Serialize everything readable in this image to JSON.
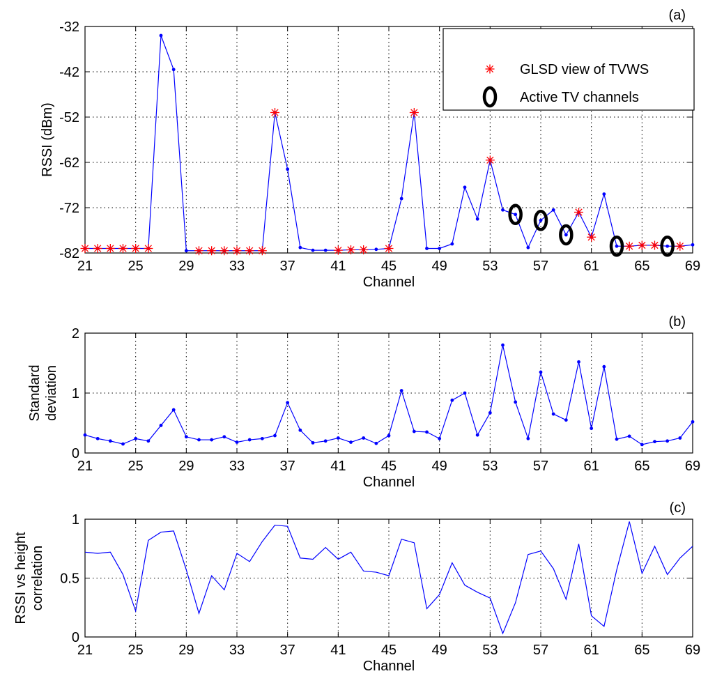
{
  "chart_data": [
    {
      "type": "line",
      "panel_label": "(a)",
      "xlabel": "Channel",
      "ylabel": "RSSI (dBm)",
      "xlim": [
        21,
        69
      ],
      "ylim": [
        -82,
        -32
      ],
      "xticks": [
        21,
        25,
        29,
        33,
        37,
        41,
        45,
        49,
        53,
        57,
        61,
        65,
        69
      ],
      "yticks": [
        -32,
        -42,
        -52,
        -62,
        -72,
        -82
      ],
      "grid": true,
      "legend": {
        "placement": "top-right",
        "entries": [
          "GLSD view of TVWS",
          "Active TV channels"
        ]
      },
      "x": [
        21,
        22,
        23,
        24,
        25,
        26,
        27,
        28,
        29,
        30,
        31,
        32,
        33,
        34,
        35,
        36,
        37,
        38,
        39,
        40,
        41,
        42,
        43,
        44,
        45,
        46,
        47,
        48,
        49,
        50,
        51,
        52,
        53,
        54,
        55,
        56,
        57,
        58,
        59,
        60,
        61,
        62,
        63,
        64,
        65,
        66,
        67,
        68,
        69
      ],
      "series": [
        {
          "style": "line-dot",
          "color": "#0000ff",
          "values": [
            -81,
            -81,
            -81,
            -81,
            -81,
            -81,
            -34,
            -41.5,
            -81.5,
            -81.5,
            -81.5,
            -81.5,
            -81.5,
            -81.5,
            -81.5,
            -51,
            -63.5,
            -80.8,
            -81.4,
            -81.4,
            -81.4,
            -81.3,
            -81.3,
            -81.2,
            -81,
            -70,
            -51,
            -81,
            -81,
            -80,
            -67.5,
            -74.5,
            -61.5,
            -72.5,
            -73.5,
            -80.8,
            -74.8,
            -72.5,
            -78,
            -73,
            -78.5,
            -69,
            -80.5,
            -80.5,
            -80.3,
            -80.3,
            -80.5,
            -80.5,
            -80.2
          ]
        },
        {
          "name": "GLSD view of TVWS",
          "style": "marker-star",
          "color": "#ff0000",
          "x": [
            21,
            22,
            23,
            24,
            25,
            26,
            30,
            31,
            32,
            33,
            34,
            35,
            36,
            41,
            42,
            43,
            45,
            47,
            53,
            60,
            61,
            64,
            65,
            66,
            68
          ],
          "values": [
            -81,
            -81,
            -81,
            -81,
            -81,
            -81,
            -81.5,
            -81.5,
            -81.5,
            -81.5,
            -81.5,
            -81.5,
            -51,
            -81.4,
            -81.3,
            -81.3,
            -81,
            -51,
            -61.5,
            -73,
            -78.5,
            -80.5,
            -80.3,
            -80.3,
            -80.5
          ]
        },
        {
          "name": "Active TV channels",
          "style": "marker-ellipse",
          "color": "#000000",
          "x": [
            55,
            57,
            59,
            63,
            67
          ],
          "values": [
            -73.5,
            -74.8,
            -78,
            -80.5,
            -80.5
          ]
        }
      ]
    },
    {
      "type": "line",
      "panel_label": "(b)",
      "xlabel": "Channel",
      "ylabel": "Standard deviation",
      "xlim": [
        21,
        69
      ],
      "ylim": [
        0,
        2
      ],
      "xticks": [
        21,
        25,
        29,
        33,
        37,
        41,
        45,
        49,
        53,
        57,
        61,
        65,
        69
      ],
      "yticks": [
        0,
        1,
        2
      ],
      "grid": true,
      "x": [
        21,
        22,
        23,
        24,
        25,
        26,
        27,
        28,
        29,
        30,
        31,
        32,
        33,
        34,
        35,
        36,
        37,
        38,
        39,
        40,
        41,
        42,
        43,
        44,
        45,
        46,
        47,
        48,
        49,
        50,
        51,
        52,
        53,
        54,
        55,
        56,
        57,
        58,
        59,
        60,
        61,
        62,
        63,
        64,
        65,
        66,
        67,
        68,
        69
      ],
      "series": [
        {
          "style": "line-dot",
          "color": "#0000ff",
          "values": [
            0.3,
            0.24,
            0.2,
            0.15,
            0.24,
            0.2,
            0.46,
            0.72,
            0.27,
            0.22,
            0.22,
            0.27,
            0.18,
            0.22,
            0.24,
            0.29,
            0.84,
            0.38,
            0.17,
            0.2,
            0.25,
            0.18,
            0.25,
            0.16,
            0.29,
            1.04,
            0.36,
            0.35,
            0.24,
            0.88,
            1.0,
            0.3,
            0.67,
            1.8,
            0.85,
            0.24,
            1.35,
            0.65,
            0.55,
            1.52,
            0.41,
            1.44,
            0.23,
            0.28,
            0.14,
            0.19,
            0.2,
            0.25,
            0.52
          ]
        }
      ]
    },
    {
      "type": "line",
      "panel_label": "(c)",
      "xlabel": "Channel",
      "ylabel": "RSSI vs height correlation",
      "xlim": [
        21,
        69
      ],
      "ylim": [
        0,
        1
      ],
      "xticks": [
        21,
        25,
        29,
        33,
        37,
        41,
        45,
        49,
        53,
        57,
        61,
        65,
        69
      ],
      "yticks": [
        0,
        0.5,
        1
      ],
      "grid": true,
      "x": [
        21,
        22,
        23,
        24,
        25,
        26,
        27,
        28,
        29,
        30,
        31,
        32,
        33,
        34,
        35,
        36,
        37,
        38,
        39,
        40,
        41,
        42,
        43,
        44,
        45,
        46,
        47,
        48,
        49,
        50,
        51,
        52,
        53,
        54,
        55,
        56,
        57,
        58,
        59,
        60,
        61,
        62,
        63,
        64,
        65,
        66,
        67,
        68,
        69
      ],
      "series": [
        {
          "style": "line",
          "color": "#0000ff",
          "values": [
            0.72,
            0.71,
            0.72,
            0.53,
            0.22,
            0.82,
            0.89,
            0.9,
            0.57,
            0.2,
            0.52,
            0.4,
            0.71,
            0.64,
            0.81,
            0.95,
            0.94,
            0.67,
            0.66,
            0.76,
            0.66,
            0.72,
            0.56,
            0.55,
            0.52,
            0.83,
            0.8,
            0.24,
            0.36,
            0.63,
            0.44,
            0.38,
            0.33,
            0.03,
            0.29,
            0.7,
            0.73,
            0.58,
            0.32,
            0.79,
            0.18,
            0.09,
            0.57,
            0.98,
            0.54,
            0.77,
            0.53,
            0.67,
            0.77
          ]
        }
      ]
    }
  ]
}
